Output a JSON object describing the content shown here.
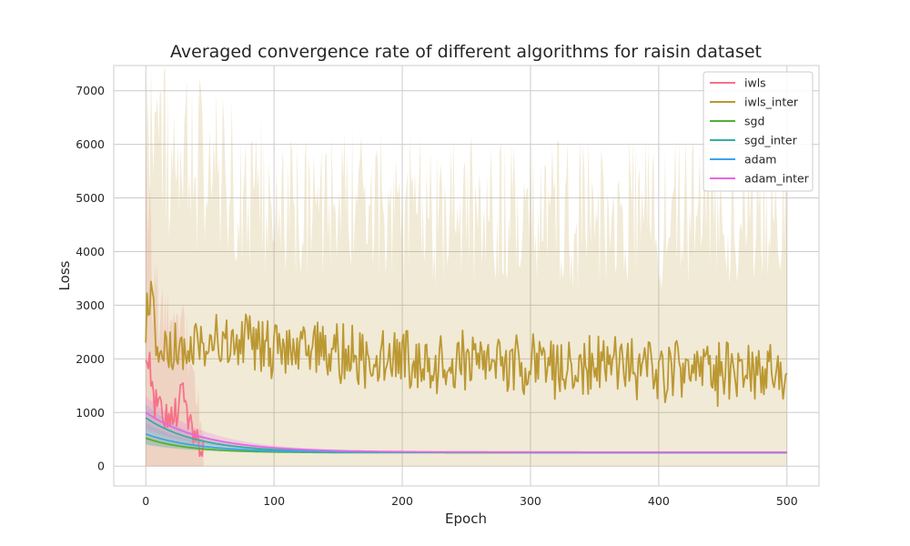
{
  "chart_data": {
    "type": "line",
    "title": "Averaged convergence rate of different algorithms for raisin dataset",
    "xlabel": "Epoch",
    "ylabel": "Loss",
    "xlim": [
      -25,
      525
    ],
    "ylim": [
      -370,
      7470
    ],
    "xticks": [
      0,
      100,
      200,
      300,
      400,
      500
    ],
    "yticks": [
      0,
      1000,
      2000,
      3000,
      4000,
      5000,
      6000,
      7000
    ],
    "grid": true,
    "legend_position": "top-right",
    "series": [
      {
        "name": "iwls",
        "color": "#f77189",
        "kind": "noisy",
        "x_end": 45,
        "anchors": [
          [
            0,
            1900
          ],
          [
            3,
            2100
          ],
          [
            6,
            1100
          ],
          [
            10,
            1300
          ],
          [
            15,
            900
          ],
          [
            20,
            1100
          ],
          [
            25,
            1000
          ],
          [
            30,
            1500
          ],
          [
            35,
            700
          ],
          [
            40,
            400
          ],
          [
            45,
            300
          ]
        ],
        "noise_amplitude": 300,
        "band_lower": 0,
        "band_upper_anchors": [
          [
            0,
            5900
          ],
          [
            5,
            3500
          ],
          [
            15,
            2500
          ],
          [
            30,
            2700
          ],
          [
            45,
            600
          ]
        ]
      },
      {
        "name": "iwls_inter",
        "color": "#bb9832",
        "kind": "noisy",
        "x_end": 500,
        "anchors": [
          [
            0,
            2200
          ],
          [
            2,
            3400
          ],
          [
            10,
            2000
          ],
          [
            50,
            2300
          ],
          [
            100,
            2200
          ],
          [
            200,
            2000
          ],
          [
            300,
            1900
          ],
          [
            400,
            1800
          ],
          [
            500,
            1700
          ]
        ],
        "noise_amplitude": 500,
        "band_lower": 0,
        "band_upper_anchors": [
          [
            0,
            6000
          ],
          [
            100,
            5000
          ],
          [
            200,
            4800
          ],
          [
            300,
            4700
          ],
          [
            400,
            4700
          ],
          [
            500,
            4800
          ]
        ]
      },
      {
        "name": "sgd",
        "color": "#50b131",
        "kind": "decay",
        "x_end": 500,
        "start": 520,
        "end": 250,
        "rate": 0.03,
        "band": 100
      },
      {
        "name": "sgd_inter",
        "color": "#36ada4",
        "kind": "decay",
        "x_end": 500,
        "start": 900,
        "end": 255,
        "rate": 0.025,
        "band": 250
      },
      {
        "name": "adam",
        "color": "#3ba3ec",
        "kind": "decay",
        "x_end": 500,
        "start": 600,
        "end": 255,
        "rate": 0.025,
        "band": 200
      },
      {
        "name": "adam_inter",
        "color": "#e866e8",
        "kind": "decay",
        "x_end": 500,
        "start": 1000,
        "end": 260,
        "rate": 0.022,
        "band": 300
      }
    ]
  }
}
